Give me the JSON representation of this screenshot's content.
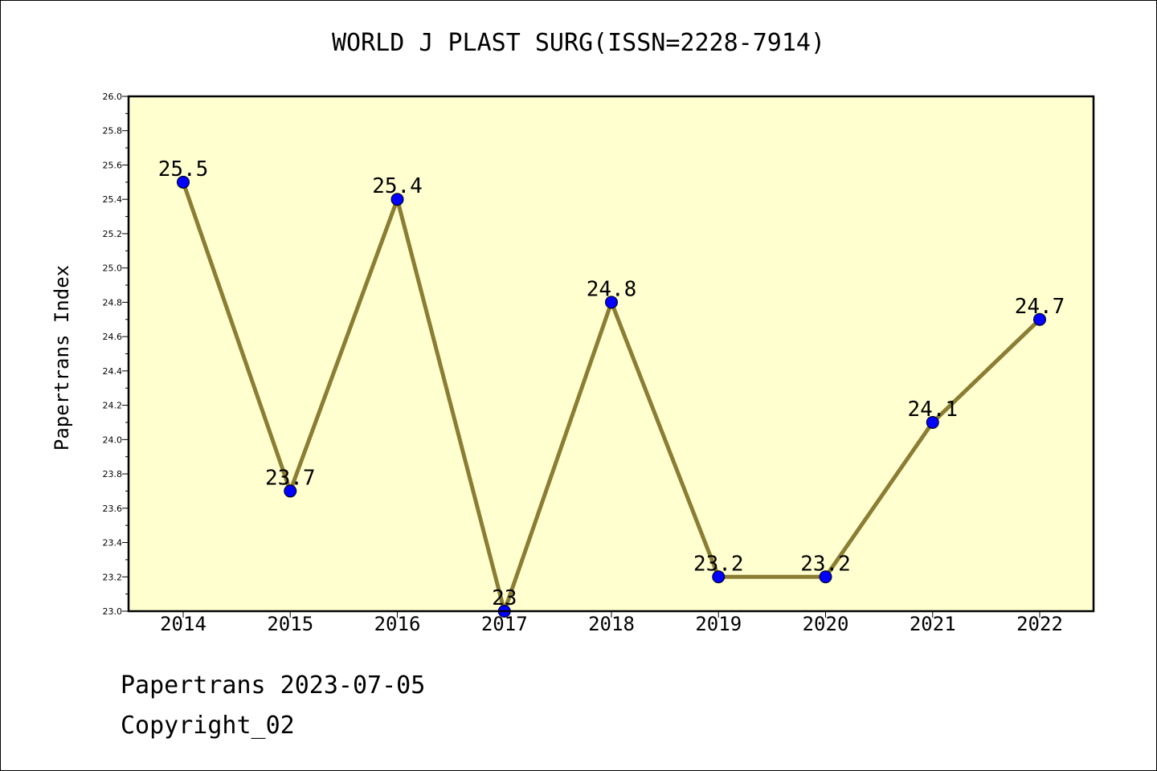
{
  "title": "WORLD J PLAST SURG(ISSN=2228-7914)",
  "footer": {
    "line1": "Papertrans 2023-07-05",
    "line2": "Copyright_02"
  },
  "colors": {
    "plot_background": "#ffffd0",
    "line": "#8b7d33",
    "marker": "#0000ff"
  },
  "chart_data": {
    "type": "line",
    "title": "WORLD J PLAST SURG(ISSN=2228-7914)",
    "xlabel": "",
    "ylabel": "Papertrans Index",
    "categories": [
      "2014",
      "2015",
      "2016",
      "2017",
      "2018",
      "2019",
      "2020",
      "2021",
      "2022"
    ],
    "series": [
      {
        "values": [
          25.5,
          23.7,
          25.4,
          23.0,
          24.8,
          23.2,
          23.2,
          24.1,
          24.7
        ]
      }
    ],
    "data_labels": [
      "25.5",
      "23.7",
      "25.4",
      "23",
      "24.8",
      "23.2",
      "23.2",
      "24.1",
      "24.7"
    ],
    "ylim": [
      23.0,
      26.0
    ],
    "yticks": [
      "23.0",
      "23.2",
      "23.4",
      "23.6",
      "23.8",
      "24.0",
      "24.2",
      "24.4",
      "24.6",
      "24.8",
      "25.0",
      "25.2",
      "25.4",
      "25.6",
      "25.8",
      "26.0"
    ],
    "grid": false,
    "legend": "none"
  }
}
